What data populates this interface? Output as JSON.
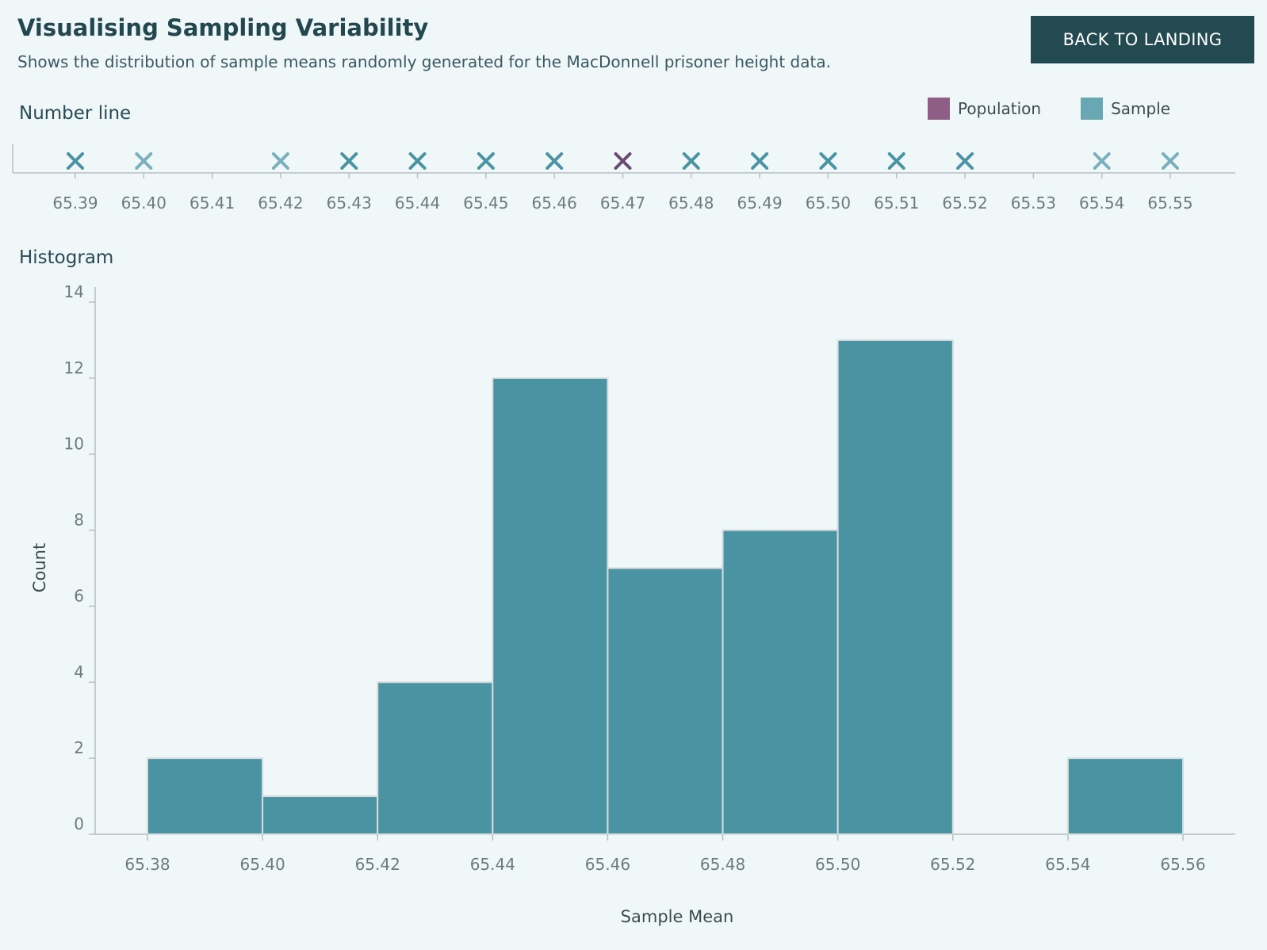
{
  "header": {
    "title": "Visualising Sampling Variability",
    "subtitle": "Shows the distribution of sample means randomly generated for the MacDonnell prisoner height data.",
    "back_button": "BACK TO LANDING"
  },
  "legend": {
    "items": [
      {
        "label": "Population",
        "color": "#8f5e86"
      },
      {
        "label": "Sample",
        "color": "#6aa7b5"
      }
    ]
  },
  "chart_data": [
    {
      "type": "scatter",
      "title": "Number line",
      "xlim": [
        65.39,
        65.55
      ],
      "ticks": [
        "65.39",
        "65.40",
        "65.41",
        "65.42",
        "65.43",
        "65.44",
        "65.45",
        "65.46",
        "65.47",
        "65.48",
        "65.49",
        "65.50",
        "65.51",
        "65.52",
        "65.53",
        "65.54",
        "65.55"
      ],
      "tick_values": [
        65.39,
        65.4,
        65.41,
        65.42,
        65.43,
        65.44,
        65.45,
        65.46,
        65.47,
        65.48,
        65.49,
        65.5,
        65.51,
        65.52,
        65.53,
        65.54,
        65.55
      ],
      "sample_means": [
        65.39,
        65.4,
        65.42,
        65.43,
        65.44,
        65.45,
        65.46,
        65.48,
        65.49,
        65.5,
        65.51,
        65.52,
        65.54,
        65.55
      ],
      "sample_strength": [
        1.0,
        0.7,
        0.7,
        1.0,
        1.0,
        1.0,
        1.0,
        1.0,
        1.0,
        1.0,
        1.0,
        1.0,
        0.7,
        0.7
      ],
      "population_mean": 65.47,
      "marker": "x",
      "sample_color": "#4a93a2",
      "population_color": "#6a4a70"
    },
    {
      "type": "bar",
      "title": "Histogram",
      "xlabel": "Sample Mean",
      "ylabel": "Count",
      "bins": [
        {
          "start": 65.38,
          "end": 65.4,
          "count": 2
        },
        {
          "start": 65.4,
          "end": 65.42,
          "count": 1
        },
        {
          "start": 65.42,
          "end": 65.44,
          "count": 4
        },
        {
          "start": 65.44,
          "end": 65.46,
          "count": 12
        },
        {
          "start": 65.46,
          "end": 65.48,
          "count": 7
        },
        {
          "start": 65.48,
          "end": 65.5,
          "count": 8
        },
        {
          "start": 65.5,
          "end": 65.52,
          "count": 13
        },
        {
          "start": 65.52,
          "end": 65.54,
          "count": 0
        },
        {
          "start": 65.54,
          "end": 65.56,
          "count": 2
        }
      ],
      "xlim": [
        65.38,
        65.56
      ],
      "ylim": [
        0,
        14
      ],
      "x_ticks": [
        "65.38",
        "65.40",
        "65.42",
        "65.44",
        "65.46",
        "65.48",
        "65.50",
        "65.52",
        "65.54",
        "65.56"
      ],
      "x_tick_values": [
        65.38,
        65.4,
        65.42,
        65.44,
        65.46,
        65.48,
        65.5,
        65.52,
        65.54,
        65.56
      ],
      "y_ticks": [
        "0",
        "2",
        "4",
        "6",
        "8",
        "10",
        "12",
        "14"
      ],
      "y_tick_values": [
        0,
        2,
        4,
        6,
        8,
        10,
        12,
        14
      ],
      "bar_color": "#4a93a2"
    }
  ]
}
